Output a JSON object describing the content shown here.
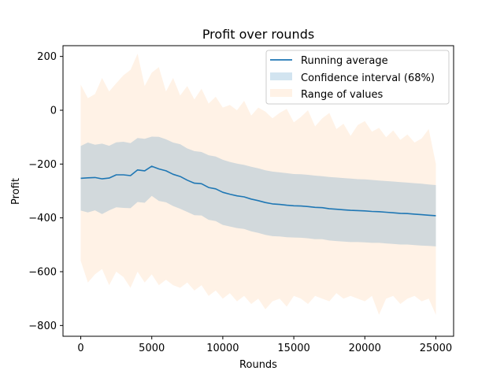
{
  "chart_data": {
    "type": "line",
    "title": "Profit over rounds",
    "xlabel": "Rounds",
    "ylabel": "Profit",
    "xlim": [
      -1250,
      26250
    ],
    "ylim": [
      -840,
      240
    ],
    "xticks": [
      0,
      5000,
      10000,
      15000,
      20000,
      25000
    ],
    "xtick_labels": [
      "0",
      "5000",
      "10000",
      "15000",
      "20000",
      "25000"
    ],
    "yticks": [
      -800,
      -600,
      -400,
      -200,
      0,
      200
    ],
    "ytick_labels": [
      "−800",
      "−600",
      "−400",
      "−200",
      "0",
      "200"
    ],
    "grid": false,
    "legend_position": "top-right",
    "colors": {
      "running_average": "#1f77b4",
      "confidence_interval": "#1f77b4",
      "range_of_values": "#ff7f0e"
    },
    "series": [
      {
        "name": "Running average",
        "kind": "line",
        "x": [
          0,
          500,
          1000,
          1500,
          2000,
          2500,
          3000,
          3500,
          4000,
          4500,
          5000,
          5500,
          6000,
          6500,
          7000,
          7500,
          8000,
          8500,
          9000,
          9500,
          10000,
          10500,
          11000,
          11500,
          12000,
          12500,
          13000,
          13500,
          14000,
          14500,
          15000,
          15500,
          16000,
          16500,
          17000,
          17500,
          18000,
          18500,
          19000,
          19500,
          20000,
          20500,
          21000,
          21500,
          22000,
          22500,
          23000,
          23500,
          24000,
          24500,
          25000
        ],
        "y": [
          -253,
          -251,
          -250,
          -255,
          -252,
          -240,
          -240,
          -243,
          -222,
          -225,
          -208,
          -218,
          -225,
          -238,
          -246,
          -260,
          -271,
          -273,
          -287,
          -292,
          -305,
          -312,
          -318,
          -322,
          -330,
          -336,
          -343,
          -348,
          -350,
          -353,
          -355,
          -356,
          -358,
          -361,
          -362,
          -366,
          -368,
          -370,
          -372,
          -373,
          -374,
          -376,
          -377,
          -379,
          -381,
          -383,
          -384,
          -386,
          -388,
          -390,
          -392
        ]
      },
      {
        "name": "Confidence interval (68%)",
        "kind": "band",
        "x": [
          0,
          500,
          1000,
          1500,
          2000,
          2500,
          3000,
          3500,
          4000,
          4500,
          5000,
          5500,
          6000,
          6500,
          7000,
          7500,
          8000,
          8500,
          9000,
          9500,
          10000,
          10500,
          11000,
          11500,
          12000,
          12500,
          13000,
          13500,
          14000,
          14500,
          15000,
          15500,
          16000,
          16500,
          17000,
          17500,
          18000,
          18500,
          19000,
          19500,
          20000,
          20500,
          21000,
          21500,
          22000,
          22500,
          23000,
          23500,
          24000,
          24500,
          25000
        ],
        "upper": [
          -133,
          -120,
          -128,
          -124,
          -132,
          -119,
          -117,
          -122,
          -103,
          -106,
          -98,
          -99,
          -108,
          -120,
          -126,
          -142,
          -152,
          -155,
          -167,
          -172,
          -184,
          -192,
          -198,
          -203,
          -210,
          -216,
          -223,
          -228,
          -231,
          -234,
          -237,
          -238,
          -240,
          -243,
          -245,
          -248,
          -250,
          -252,
          -254,
          -256,
          -257,
          -259,
          -261,
          -263,
          -265,
          -267,
          -269,
          -271,
          -273,
          -276,
          -278
        ],
        "lower": [
          -373,
          -380,
          -372,
          -386,
          -372,
          -361,
          -363,
          -364,
          -341,
          -344,
          -318,
          -337,
          -342,
          -356,
          -366,
          -378,
          -390,
          -391,
          -407,
          -412,
          -426,
          -432,
          -438,
          -441,
          -450,
          -456,
          -463,
          -468,
          -469,
          -472,
          -473,
          -474,
          -476,
          -479,
          -479,
          -484,
          -486,
          -488,
          -490,
          -490,
          -491,
          -493,
          -493,
          -495,
          -497,
          -499,
          -499,
          -501,
          -503,
          -504,
          -506
        ]
      },
      {
        "name": "Range of values",
        "kind": "band",
        "x": [
          0,
          500,
          1000,
          1500,
          2000,
          2500,
          3000,
          3500,
          4000,
          4500,
          5000,
          5500,
          6000,
          6500,
          7000,
          7500,
          8000,
          8500,
          9000,
          9500,
          10000,
          10500,
          11000,
          11500,
          12000,
          12500,
          13000,
          13500,
          14000,
          14500,
          15000,
          15500,
          16000,
          16500,
          17000,
          17500,
          18000,
          18500,
          19000,
          19500,
          20000,
          20500,
          21000,
          21500,
          22000,
          22500,
          23000,
          23500,
          24000,
          24500,
          25000
        ],
        "upper": [
          95,
          45,
          60,
          120,
          70,
          100,
          130,
          150,
          210,
          90,
          140,
          160,
          70,
          120,
          55,
          90,
          40,
          80,
          25,
          50,
          10,
          20,
          0,
          35,
          -20,
          10,
          -5,
          -30,
          -10,
          5,
          -45,
          -25,
          0,
          -60,
          -30,
          -10,
          -70,
          -50,
          -95,
          -55,
          -40,
          -80,
          -65,
          -100,
          -75,
          -110,
          -90,
          -120,
          -105,
          -70,
          -200
        ],
        "lower": [
          -560,
          -640,
          -610,
          -590,
          -650,
          -600,
          -620,
          -660,
          -600,
          -640,
          -610,
          -650,
          -630,
          -650,
          -660,
          -640,
          -670,
          -650,
          -690,
          -670,
          -700,
          -680,
          -710,
          -690,
          -720,
          -700,
          -740,
          -710,
          -700,
          -730,
          -690,
          -700,
          -720,
          -690,
          -700,
          -710,
          -680,
          -700,
          -690,
          -700,
          -710,
          -690,
          -760,
          -700,
          -690,
          -720,
          -700,
          -690,
          -710,
          -700,
          -760
        ]
      }
    ]
  }
}
